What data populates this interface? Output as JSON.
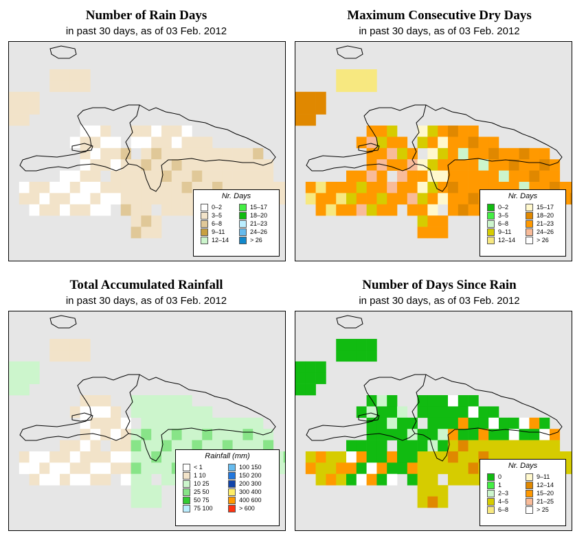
{
  "panels": [
    {
      "id": "rain-days",
      "title": "Number of Rain Days",
      "subtitle": "in past 30 days, as of  03 Feb. 2012",
      "legend_title": "Nr. Days",
      "legend": [
        {
          "label": "0–2",
          "color": "#ffffff"
        },
        {
          "label": "3–5",
          "color": "#f2e3c9"
        },
        {
          "label": "6–8",
          "color": "#e0c898"
        },
        {
          "label": "9–11",
          "color": "#c8a040"
        },
        {
          "label": "12–14",
          "color": "#ccf5cc"
        },
        {
          "label": "15–17",
          "color": "#44ee44"
        },
        {
          "label": "18–20",
          "color": "#11bb11"
        },
        {
          "label": "21–23",
          "color": "#bbeeff"
        },
        {
          "label": "24–26",
          "color": "#66bbee"
        },
        {
          "label": "> 26",
          "color": "#1188cc"
        }
      ]
    },
    {
      "id": "dry-days",
      "title": "Maximum Consecutive Dry Days",
      "subtitle": "in past 30 days, as of  03 Feb. 2012",
      "legend_title": "Nr. Days",
      "legend": [
        {
          "label": "0–2",
          "color": "#11bb11"
        },
        {
          "label": "3–5",
          "color": "#44ee44"
        },
        {
          "label": "6–8",
          "color": "#ccf5cc"
        },
        {
          "label": "9–11",
          "color": "#d6cc00"
        },
        {
          "label": "12–14",
          "color": "#f7e880"
        },
        {
          "label": "15–17",
          "color": "#fff8cc"
        },
        {
          "label": "18–20",
          "color": "#e08800"
        },
        {
          "label": "21–23",
          "color": "#ff9900"
        },
        {
          "label": "24–26",
          "color": "#f8bb99"
        },
        {
          "label": "> 26",
          "color": "#ffffff"
        }
      ]
    },
    {
      "id": "rainfall",
      "title": "Total Accumulated Rainfall",
      "subtitle": "in past 30 days, as of  03 Feb. 2012",
      "legend_title": "Rainfall (mm)",
      "legend": [
        {
          "label": "< 1",
          "color": "#ffffff"
        },
        {
          "label": "1    10",
          "color": "#f2e3c9"
        },
        {
          "label": "10    25",
          "color": "#ccf5cc"
        },
        {
          "label": "25    50",
          "color": "#88e488"
        },
        {
          "label": "50    75",
          "color": "#33cc33"
        },
        {
          "label": "75  100",
          "color": "#bbeeff"
        },
        {
          "label": "100  150",
          "color": "#66bbee"
        },
        {
          "label": "150  200",
          "color": "#2277dd"
        },
        {
          "label": "200  300",
          "color": "#1144aa"
        },
        {
          "label": "300  400",
          "color": "#ffee66"
        },
        {
          "label": "400  600",
          "color": "#ff9900"
        },
        {
          "label": "> 600",
          "color": "#ff3311"
        }
      ]
    },
    {
      "id": "since-rain",
      "title": "Number of Days Since Rain",
      "subtitle": "in past 30 days, as of  03 Feb. 2012",
      "legend_title": "Nr. Days",
      "legend": [
        {
          "label": "0",
          "color": "#11bb11"
        },
        {
          "label": "1",
          "color": "#44ee44"
        },
        {
          "label": "2–3",
          "color": "#ccf5cc"
        },
        {
          "label": "4–5",
          "color": "#d6cc00"
        },
        {
          "label": "6–8",
          "color": "#f7e880"
        },
        {
          "label": "9–11",
          "color": "#fff8cc"
        },
        {
          "label": "12–14",
          "color": "#e08800"
        },
        {
          "label": "15–20",
          "color": "#ff9900"
        },
        {
          "label": "21–25",
          "color": "#f8bb99"
        },
        {
          "label": "> 25",
          "color": "#ffffff"
        }
      ]
    }
  ]
}
